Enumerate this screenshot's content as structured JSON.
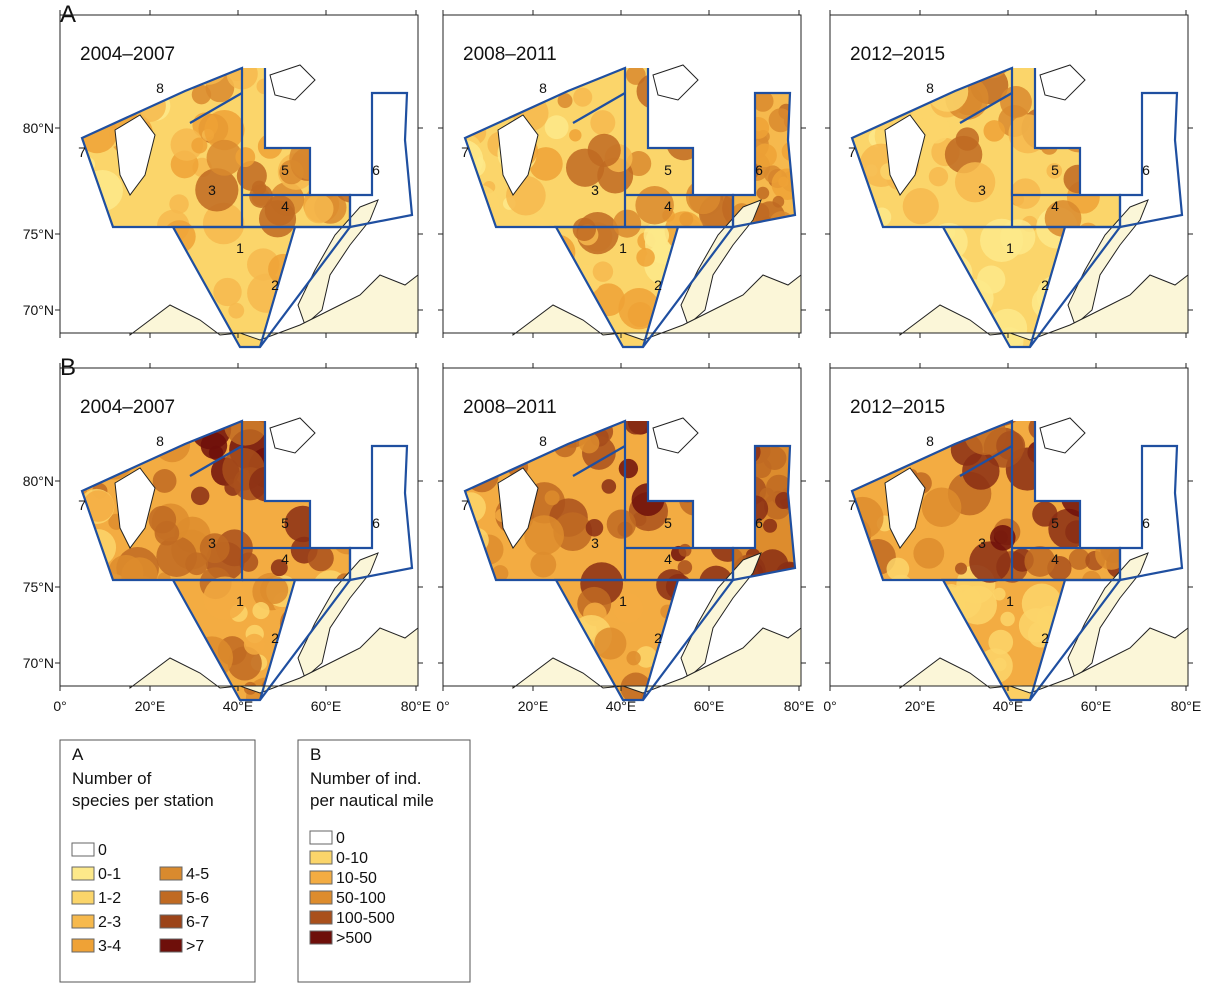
{
  "rows": [
    {
      "label": "A",
      "maps": [
        {
          "title": "2004–2007"
        },
        {
          "title": "2008–2011"
        },
        {
          "title": "2012–2015"
        }
      ]
    },
    {
      "label": "B",
      "maps": [
        {
          "title": "2004–2007"
        },
        {
          "title": "2008–2011"
        },
        {
          "title": "2012–2015"
        }
      ]
    }
  ],
  "lat_labels": [
    "80°N",
    "75°N",
    "70°N"
  ],
  "lon_labels": [
    "0°",
    "20°E",
    "40°E",
    "60°E",
    "80°E"
  ],
  "region_numbers": [
    "1",
    "2",
    "3",
    "4",
    "5",
    "6",
    "7",
    "8"
  ],
  "legends": [
    {
      "label": "A",
      "title_lines": [
        "Number of",
        "species per station"
      ],
      "items": [
        {
          "label": "0",
          "color": "#ffffff"
        },
        {
          "label": "0-1",
          "color": "#fde98a"
        },
        {
          "label": "1-2",
          "color": "#fbd56a"
        },
        {
          "label": "2-3",
          "color": "#f6b94d"
        },
        {
          "label": "3-4",
          "color": "#efa236"
        },
        {
          "label": "4-5",
          "color": "#d98a2e"
        },
        {
          "label": "5-6",
          "color": "#c06a22"
        },
        {
          "label": "6-7",
          "color": "#9c4419"
        },
        {
          "label": ">7",
          "color": "#6e0f0a"
        }
      ]
    },
    {
      "label": "B",
      "title_lines": [
        "Number of ind.",
        "per nautical mile"
      ],
      "items": [
        {
          "label": "0",
          "color": "#ffffff"
        },
        {
          "label": "0-10",
          "color": "#fbd56a"
        },
        {
          "label": "10-50",
          "color": "#f3ac42"
        },
        {
          "label": "50-100",
          "color": "#dd8c2d"
        },
        {
          "label": "100-500",
          "color": "#a9501c"
        },
        {
          "label": ">500",
          "color": "#6e0f0a"
        }
      ]
    }
  ]
}
